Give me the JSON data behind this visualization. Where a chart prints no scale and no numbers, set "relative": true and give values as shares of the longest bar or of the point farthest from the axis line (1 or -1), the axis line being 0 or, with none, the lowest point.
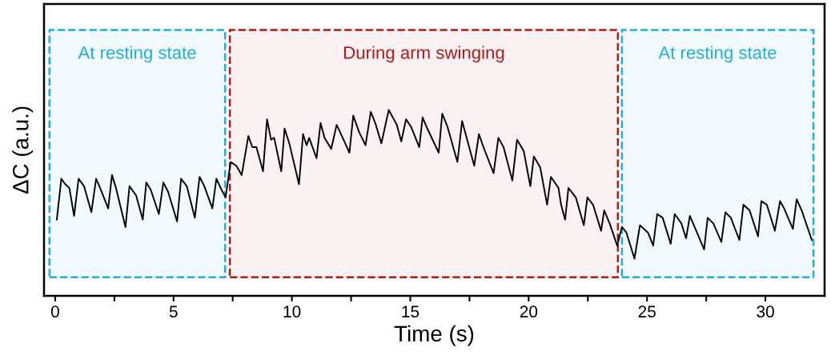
{
  "chart_data": {
    "type": "line",
    "relative": true,
    "xlabel": "Time (s)",
    "ylabel": "ΔC (a.u.)",
    "xlim": [
      -0.47,
      32.5
    ],
    "xticks": [
      0,
      {
        "value": 2.5,
        "label": null
      },
      5,
      {
        "value": 7.5,
        "label": null
      },
      10,
      {
        "value": 12.5,
        "label": null
      },
      15,
      {
        "value": 17.5,
        "label": null
      },
      20,
      {
        "value": 22.5,
        "label": null
      },
      25,
      {
        "value": 27.5,
        "label": null
      },
      30
    ],
    "grid": false,
    "legend": false,
    "marker": "none",
    "line_style": "solid",
    "bands": [
      {
        "axis": "x",
        "from": -0.24,
        "to": 7.18,
        "label": "At resting state",
        "color": "#1eaee0"
      },
      {
        "axis": "x",
        "from": 7.38,
        "to": 23.77,
        "label": "During arm swinging",
        "color": "#b01a1a"
      },
      {
        "axis": "x",
        "from": 23.94,
        "to": 32.03,
        "label": "At resting state",
        "color": "#1eaee0"
      }
    ],
    "series": [
      {
        "color": "#000000",
        "x": [
          0.07,
          0.26,
          0.43,
          0.6,
          0.8,
          0.99,
          1.22,
          1.53,
          1.73,
          1.9,
          2.24,
          2.4,
          2.57,
          2.97,
          3.14,
          3.42,
          3.7,
          3.85,
          4.04,
          4.38,
          4.57,
          4.77,
          5.15,
          5.32,
          5.56,
          5.9,
          6.1,
          6.3,
          6.64,
          6.81,
          7.03,
          7.2,
          7.41,
          7.65,
          7.88,
          8.16,
          8.33,
          8.5,
          8.78,
          8.95,
          9.12,
          9.25,
          9.55,
          9.69,
          9.89,
          10.3,
          10.47,
          10.62,
          10.73,
          11.04,
          11.21,
          11.38,
          11.66,
          11.89,
          12.11,
          12.43,
          12.59,
          12.84,
          13.11,
          13.33,
          13.52,
          13.78,
          14.09,
          14.43,
          14.62,
          14.82,
          15.03,
          15.38,
          15.52,
          15.72,
          16.2,
          16.35,
          16.57,
          16.99,
          17.19,
          17.36,
          17.7,
          17.9,
          18.09,
          18.52,
          18.72,
          18.94,
          19.31,
          19.51,
          19.79,
          20.07,
          20.22,
          20.49,
          20.78,
          20.94,
          21.26,
          21.37,
          21.54,
          21.68,
          21.99,
          22.33,
          22.48,
          22.72,
          23.06,
          23.19,
          23.42,
          23.74,
          23.94,
          24.13,
          24.47,
          24.7,
          25.04,
          25.26,
          25.43,
          25.66,
          26.0,
          26.17,
          26.45,
          26.65,
          26.81,
          27.01,
          27.41,
          27.56,
          27.8,
          28.14,
          28.31,
          28.54,
          28.9,
          29.07,
          29.33,
          29.69,
          29.83,
          30.06,
          30.4,
          30.62,
          30.79,
          31.16,
          31.32,
          31.53,
          31.96
        ],
        "values": [
          0.41,
          0.63,
          0.6,
          0.58,
          0.43,
          0.63,
          0.59,
          0.45,
          0.63,
          0.58,
          0.47,
          0.65,
          0.58,
          0.37,
          0.59,
          0.54,
          0.41,
          0.61,
          0.57,
          0.44,
          0.61,
          0.56,
          0.4,
          0.63,
          0.59,
          0.42,
          0.64,
          0.59,
          0.47,
          0.63,
          0.57,
          0.53,
          0.72,
          0.7,
          0.65,
          0.86,
          0.8,
          0.8,
          0.67,
          0.95,
          0.84,
          0.85,
          0.67,
          0.9,
          0.82,
          0.6,
          0.87,
          0.81,
          0.85,
          0.74,
          0.93,
          0.85,
          0.79,
          0.92,
          0.86,
          0.77,
          0.97,
          0.88,
          0.81,
          0.99,
          0.93,
          0.82,
          1.0,
          0.92,
          0.83,
          0.95,
          0.91,
          0.8,
          0.96,
          0.9,
          0.77,
          0.98,
          0.91,
          0.72,
          0.94,
          0.86,
          0.7,
          0.87,
          0.8,
          0.66,
          0.85,
          0.8,
          0.62,
          0.84,
          0.78,
          0.59,
          0.75,
          0.69,
          0.49,
          0.64,
          0.58,
          0.49,
          0.41,
          0.58,
          0.53,
          0.38,
          0.53,
          0.49,
          0.35,
          0.46,
          0.39,
          0.27,
          0.37,
          0.34,
          0.2,
          0.38,
          0.34,
          0.27,
          0.44,
          0.42,
          0.28,
          0.44,
          0.39,
          0.31,
          0.43,
          0.37,
          0.25,
          0.42,
          0.39,
          0.29,
          0.45,
          0.42,
          0.3,
          0.49,
          0.46,
          0.32,
          0.51,
          0.49,
          0.35,
          0.51,
          0.47,
          0.36,
          0.52,
          0.46,
          0.3
        ]
      }
    ]
  }
}
